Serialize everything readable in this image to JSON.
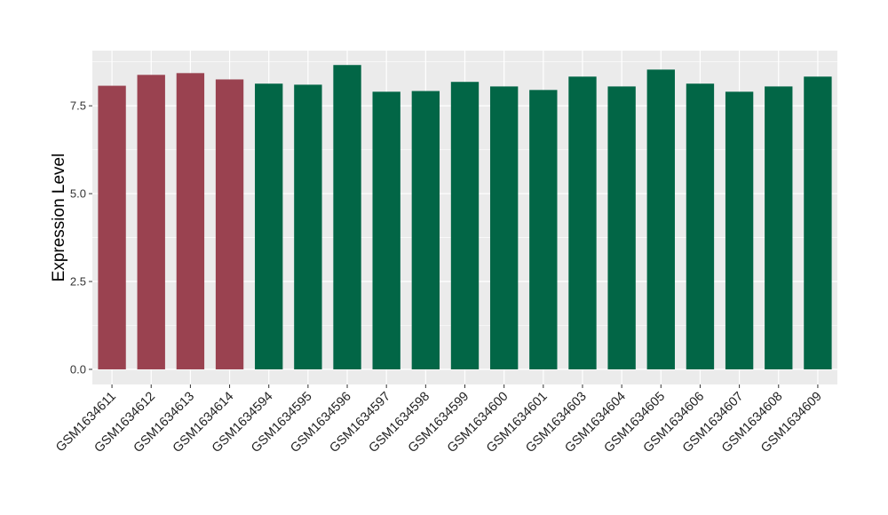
{
  "chart_data": {
    "type": "bar",
    "title": "",
    "xlabel": "",
    "ylabel": "Expression Level",
    "ylim": [
      -0.43,
      9.07
    ],
    "yticks": [
      0.0,
      2.5,
      5.0,
      7.5
    ],
    "ytick_labels": [
      "0.0",
      "2.5",
      "5.0",
      "7.5"
    ],
    "grid": true,
    "categories": [
      "GSM1634611",
      "GSM1634612",
      "GSM1634613",
      "GSM1634614",
      "GSM1634594",
      "GSM1634595",
      "GSM1634596",
      "GSM1634597",
      "GSM1634598",
      "GSM1634599",
      "GSM1634600",
      "GSM1634601",
      "GSM1634603",
      "GSM1634604",
      "GSM1634605",
      "GSM1634606",
      "GSM1634607",
      "GSM1634608",
      "GSM1634609"
    ],
    "values": [
      8.07,
      8.38,
      8.43,
      8.25,
      8.13,
      8.1,
      8.66,
      7.9,
      7.92,
      8.18,
      8.05,
      7.95,
      8.33,
      8.05,
      8.53,
      8.13,
      7.9,
      8.05,
      8.33
    ],
    "groups": [
      "a",
      "a",
      "a",
      "a",
      "b",
      "b",
      "b",
      "b",
      "b",
      "b",
      "b",
      "b",
      "b",
      "b",
      "b",
      "b",
      "b",
      "b",
      "b"
    ],
    "colors": {
      "a": "#9a4250",
      "b": "#026646"
    },
    "panel_background": "#ebebeb"
  }
}
